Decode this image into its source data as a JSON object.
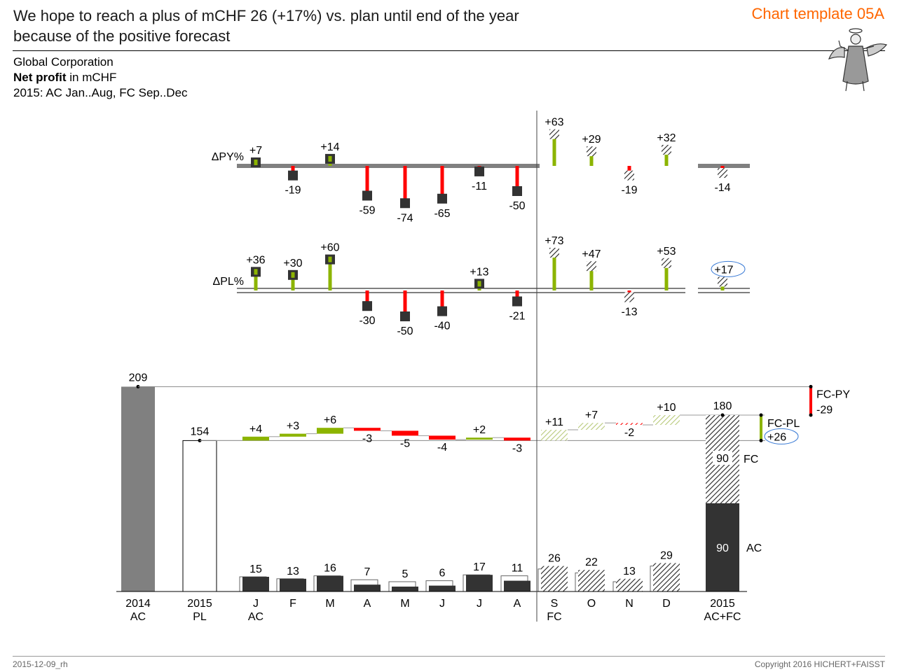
{
  "header": {
    "title_line1": "We hope to reach a plus of mCHF 26 (+17%) vs. plan until end of the year",
    "title_line2": "because of the positive forecast",
    "template_label": "Chart template 05A",
    "company": "Global Corporation",
    "measure_bold": "Net profit",
    "measure_rest": " in mCHF",
    "period": "2015: AC Jan..Aug, FC Sep..Dec"
  },
  "footer": {
    "date": "2015-12-09_rh",
    "copyright": "Copyright 2016 HICHERT+FAISST"
  },
  "colors": {
    "ac": "#333333",
    "py": "#808080",
    "positive": "#8cb400",
    "negative": "#ff0000",
    "forecast_positive_hatch": "#b8c97a",
    "template_label": "#ff6600",
    "highlight_ellipse": "#3a7bd5"
  },
  "icons": {
    "illustration": "angel-icon"
  },
  "chart_data": {
    "type": "bar",
    "months": [
      "J",
      "F",
      "M",
      "A",
      "M",
      "J",
      "J",
      "A",
      "S",
      "O",
      "N",
      "D"
    ],
    "scenario_split": {
      "actual_label": "AC",
      "forecast_label": "FC",
      "first_forecast_index": 8
    },
    "delta_py_percent": {
      "label": "ΔPY%",
      "values": [
        7,
        -19,
        14,
        -59,
        -74,
        -65,
        -11,
        -50,
        63,
        29,
        -19,
        32
      ],
      "total": -14
    },
    "delta_pl_percent": {
      "label": "ΔPL%",
      "values": [
        36,
        30,
        60,
        -30,
        -50,
        -40,
        13,
        -21,
        73,
        47,
        -13,
        53
      ],
      "total": 17
    },
    "monthly_values": {
      "values": [
        15,
        13,
        16,
        7,
        5,
        6,
        17,
        11,
        26,
        22,
        13,
        29
      ]
    },
    "waterfall": {
      "py_2014": {
        "label_year": "2014",
        "label_scenario": "AC",
        "value": 209
      },
      "pl_2015": {
        "label_year": "2015",
        "label_scenario": "PL",
        "value": 154
      },
      "deltas": [
        4,
        3,
        6,
        -3,
        -5,
        -4,
        2,
        -3,
        11,
        7,
        -2,
        10
      ],
      "total_2015": {
        "label_year": "2015",
        "label_scenario": "AC+FC",
        "value": 180,
        "ac": 90,
        "fc": 90,
        "ac_label": "AC",
        "fc_label": "FC"
      },
      "fc_py": {
        "label": "FC-PY",
        "value": -29
      },
      "fc_pl": {
        "label": "FC-PL",
        "value": 26
      }
    }
  }
}
